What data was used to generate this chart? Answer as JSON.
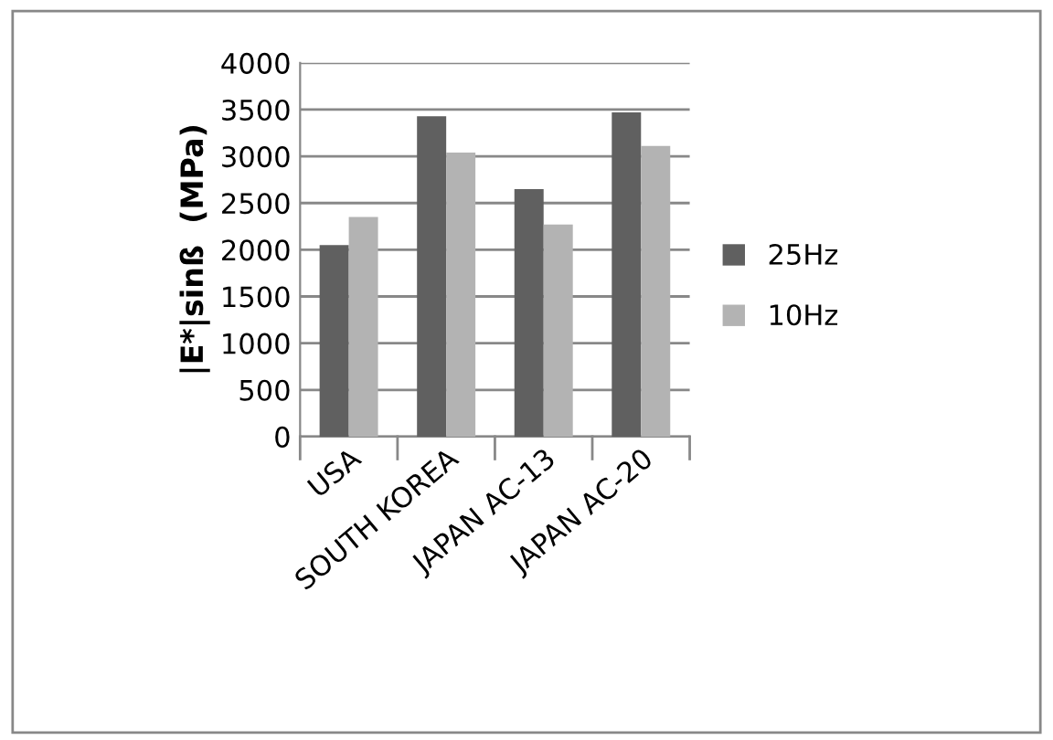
{
  "chart_data": {
    "type": "bar",
    "ylabel": "|E*|sinß  (MPa)",
    "categories": [
      "USA",
      "SOUTH KOREA",
      "JAPAN AC-13",
      "JAPAN AC-20"
    ],
    "series": [
      {
        "name": "25Hz",
        "color": "#606060",
        "values": [
          2050,
          3430,
          2650,
          3470
        ]
      },
      {
        "name": "10Hz",
        "color": "#b3b3b3",
        "values": [
          2350,
          3040,
          2270,
          3110
        ]
      }
    ],
    "ylim": [
      0,
      4000
    ],
    "yticks": [
      0,
      500,
      1000,
      1500,
      2000,
      2500,
      3000,
      3500,
      4000
    ],
    "grid": "y",
    "legend": "right"
  }
}
